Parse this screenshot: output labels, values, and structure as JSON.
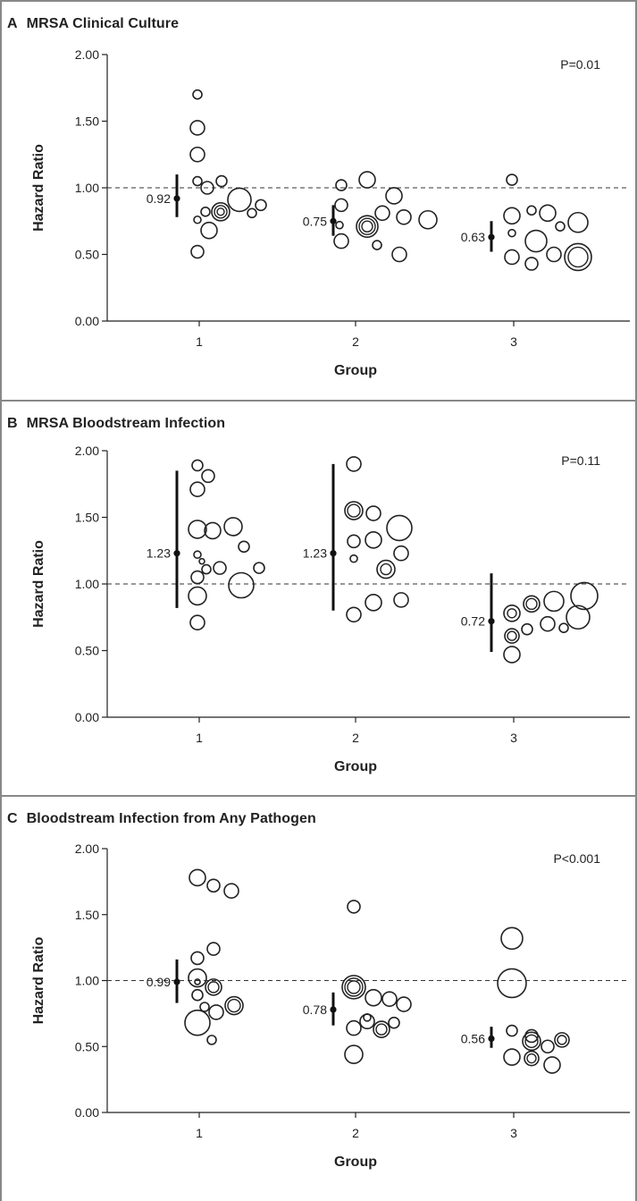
{
  "chart_data": [
    {
      "type": "scatter",
      "panel_letter": "A",
      "title": "MRSA Clinical Culture",
      "xlabel": "Group",
      "ylabel": "Hazard Ratio",
      "p_value": "P=0.01",
      "ylim": [
        0,
        2
      ],
      "yticks": [
        "0.00",
        "0.50",
        "1.00",
        "1.50",
        "2.00"
      ],
      "categories": [
        "1",
        "2",
        "3"
      ],
      "reference_line": 1.0,
      "group_estimates": [
        {
          "group": "1",
          "label": "0.92",
          "value": 0.92,
          "ci": [
            0.78,
            1.1
          ]
        },
        {
          "group": "2",
          "label": "0.75",
          "value": 0.75,
          "ci": [
            0.64,
            0.87
          ]
        },
        {
          "group": "3",
          "label": "0.63",
          "value": 0.63,
          "ci": [
            0.52,
            0.75
          ]
        }
      ],
      "points": [
        {
          "group": 1,
          "offset": -0.02,
          "hr": 1.7,
          "size": 5
        },
        {
          "group": 1,
          "offset": -0.02,
          "hr": 1.45,
          "size": 8
        },
        {
          "group": 1,
          "offset": -0.02,
          "hr": 1.25,
          "size": 8
        },
        {
          "group": 1,
          "offset": -0.02,
          "hr": 1.05,
          "size": 5
        },
        {
          "group": 1,
          "offset": 0.09,
          "hr": 1.0,
          "size": 7
        },
        {
          "group": 1,
          "offset": 0.25,
          "hr": 1.05,
          "size": 6
        },
        {
          "group": 1,
          "offset": -0.02,
          "hr": 0.76,
          "size": 4
        },
        {
          "group": 1,
          "offset": 0.07,
          "hr": 0.82,
          "size": 5
        },
        {
          "group": 1,
          "offset": 0.24,
          "hr": 0.82,
          "size": 10,
          "inner": [
            7,
            4
          ]
        },
        {
          "group": 1,
          "offset": 0.45,
          "hr": 0.91,
          "size": 13
        },
        {
          "group": 1,
          "offset": 0.59,
          "hr": 0.81,
          "size": 5
        },
        {
          "group": 1,
          "offset": 0.69,
          "hr": 0.87,
          "size": 6
        },
        {
          "group": 1,
          "offset": 0.11,
          "hr": 0.68,
          "size": 9
        },
        {
          "group": 1,
          "offset": -0.02,
          "hr": 0.52,
          "size": 7
        },
        {
          "group": 2,
          "offset": -0.16,
          "hr": 1.02,
          "size": 6
        },
        {
          "group": 2,
          "offset": 0.13,
          "hr": 1.06,
          "size": 9
        },
        {
          "group": 2,
          "offset": -0.16,
          "hr": 0.87,
          "size": 7
        },
        {
          "group": 2,
          "offset": -0.18,
          "hr": 0.72,
          "size": 4
        },
        {
          "group": 2,
          "offset": 0.13,
          "hr": 0.71,
          "size": 12,
          "inner": [
            9,
            6
          ]
        },
        {
          "group": 2,
          "offset": 0.3,
          "hr": 0.81,
          "size": 8
        },
        {
          "group": 2,
          "offset": 0.43,
          "hr": 0.94,
          "size": 9
        },
        {
          "group": 2,
          "offset": 0.54,
          "hr": 0.78,
          "size": 8
        },
        {
          "group": 2,
          "offset": 0.81,
          "hr": 0.76,
          "size": 10
        },
        {
          "group": 2,
          "offset": -0.16,
          "hr": 0.6,
          "size": 8
        },
        {
          "group": 2,
          "offset": 0.24,
          "hr": 0.57,
          "size": 5
        },
        {
          "group": 2,
          "offset": 0.49,
          "hr": 0.5,
          "size": 8
        },
        {
          "group": 3,
          "offset": -0.02,
          "hr": 1.06,
          "size": 6
        },
        {
          "group": 3,
          "offset": -0.02,
          "hr": 0.79,
          "size": 9
        },
        {
          "group": 3,
          "offset": 0.2,
          "hr": 0.83,
          "size": 5
        },
        {
          "group": 3,
          "offset": 0.38,
          "hr": 0.81,
          "size": 9
        },
        {
          "group": 3,
          "offset": 0.52,
          "hr": 0.71,
          "size": 5
        },
        {
          "group": 3,
          "offset": 0.72,
          "hr": 0.74,
          "size": 11
        },
        {
          "group": 3,
          "offset": -0.02,
          "hr": 0.66,
          "size": 4
        },
        {
          "group": 3,
          "offset": 0.25,
          "hr": 0.6,
          "size": 12
        },
        {
          "group": 3,
          "offset": -0.02,
          "hr": 0.48,
          "size": 8
        },
        {
          "group": 3,
          "offset": 0.2,
          "hr": 0.43,
          "size": 7
        },
        {
          "group": 3,
          "offset": 0.45,
          "hr": 0.5,
          "size": 8
        },
        {
          "group": 3,
          "offset": 0.72,
          "hr": 0.48,
          "size": 15,
          "inner": [
            11
          ]
        }
      ]
    },
    {
      "type": "scatter",
      "panel_letter": "B",
      "title": "MRSA Bloodstream Infection",
      "xlabel": "Group",
      "ylabel": "Hazard Ratio",
      "p_value": "P=0.11",
      "ylim": [
        0,
        2
      ],
      "yticks": [
        "0.00",
        "0.50",
        "1.00",
        "1.50",
        "2.00"
      ],
      "categories": [
        "1",
        "2",
        "3"
      ],
      "reference_line": 1.0,
      "group_estimates": [
        {
          "group": "1",
          "label": "1.23",
          "value": 1.23,
          "ci": [
            0.82,
            1.85
          ]
        },
        {
          "group": "2",
          "label": "1.23",
          "value": 1.23,
          "ci": [
            0.8,
            1.9
          ]
        },
        {
          "group": "3",
          "label": "0.72",
          "value": 0.72,
          "ci": [
            0.49,
            1.08
          ]
        }
      ],
      "points": [
        {
          "group": 1,
          "offset": -0.02,
          "hr": 1.89,
          "size": 6
        },
        {
          "group": 1,
          "offset": 0.1,
          "hr": 1.81,
          "size": 7
        },
        {
          "group": 1,
          "offset": -0.02,
          "hr": 1.71,
          "size": 8
        },
        {
          "group": 1,
          "offset": -0.02,
          "hr": 1.41,
          "size": 10
        },
        {
          "group": 1,
          "offset": 0.15,
          "hr": 1.4,
          "size": 9
        },
        {
          "group": 1,
          "offset": 0.38,
          "hr": 1.43,
          "size": 10
        },
        {
          "group": 1,
          "offset": -0.02,
          "hr": 1.22,
          "size": 4
        },
        {
          "group": 1,
          "offset": 0.03,
          "hr": 1.17,
          "size": 3
        },
        {
          "group": 1,
          "offset": 0.08,
          "hr": 1.11,
          "size": 5
        },
        {
          "group": 1,
          "offset": 0.23,
          "hr": 1.12,
          "size": 7
        },
        {
          "group": 1,
          "offset": 0.5,
          "hr": 1.28,
          "size": 6
        },
        {
          "group": 1,
          "offset": 0.67,
          "hr": 1.12,
          "size": 6
        },
        {
          "group": 1,
          "offset": -0.02,
          "hr": 1.05,
          "size": 7
        },
        {
          "group": 1,
          "offset": -0.02,
          "hr": 0.91,
          "size": 10
        },
        {
          "group": 1,
          "offset": 0.47,
          "hr": 0.99,
          "size": 14
        },
        {
          "group": 1,
          "offset": -0.02,
          "hr": 0.71,
          "size": 8
        },
        {
          "group": 2,
          "offset": -0.02,
          "hr": 1.9,
          "size": 8
        },
        {
          "group": 2,
          "offset": -0.02,
          "hr": 1.55,
          "size": 10,
          "inner": [
            7
          ]
        },
        {
          "group": 2,
          "offset": 0.2,
          "hr": 1.53,
          "size": 8
        },
        {
          "group": 2,
          "offset": 0.49,
          "hr": 1.42,
          "size": 14
        },
        {
          "group": 2,
          "offset": -0.02,
          "hr": 1.32,
          "size": 7
        },
        {
          "group": 2,
          "offset": 0.2,
          "hr": 1.33,
          "size": 9
        },
        {
          "group": 2,
          "offset": -0.02,
          "hr": 1.19,
          "size": 4
        },
        {
          "group": 2,
          "offset": 0.51,
          "hr": 1.23,
          "size": 8
        },
        {
          "group": 2,
          "offset": 0.34,
          "hr": 1.11,
          "size": 10,
          "inner": [
            6
          ]
        },
        {
          "group": 2,
          "offset": 0.2,
          "hr": 0.86,
          "size": 9
        },
        {
          "group": 2,
          "offset": 0.51,
          "hr": 0.88,
          "size": 8
        },
        {
          "group": 2,
          "offset": -0.02,
          "hr": 0.77,
          "size": 8
        },
        {
          "group": 3,
          "offset": -0.02,
          "hr": 0.78,
          "size": 9,
          "inner": [
            5
          ]
        },
        {
          "group": 3,
          "offset": 0.2,
          "hr": 0.85,
          "size": 9,
          "inner": [
            6
          ]
        },
        {
          "group": 3,
          "offset": 0.45,
          "hr": 0.87,
          "size": 11
        },
        {
          "group": 3,
          "offset": 0.79,
          "hr": 0.91,
          "size": 15
        },
        {
          "group": 3,
          "offset": -0.02,
          "hr": 0.61,
          "size": 8,
          "inner": [
            5
          ]
        },
        {
          "group": 3,
          "offset": 0.15,
          "hr": 0.66,
          "size": 6
        },
        {
          "group": 3,
          "offset": 0.38,
          "hr": 0.7,
          "size": 8
        },
        {
          "group": 3,
          "offset": 0.56,
          "hr": 0.67,
          "size": 5
        },
        {
          "group": 3,
          "offset": 0.72,
          "hr": 0.75,
          "size": 13
        },
        {
          "group": 3,
          "offset": -0.02,
          "hr": 0.47,
          "size": 9
        }
      ]
    },
    {
      "type": "scatter",
      "panel_letter": "C",
      "title": "Bloodstream Infection from Any Pathogen",
      "xlabel": "Group",
      "ylabel": "Hazard Ratio",
      "p_value": "P<0.001",
      "ylim": [
        0,
        2
      ],
      "yticks": [
        "0.00",
        "0.50",
        "1.00",
        "1.50",
        "2.00"
      ],
      "categories": [
        "1",
        "2",
        "3"
      ],
      "reference_line": 1.0,
      "group_estimates": [
        {
          "group": "1",
          "label": "0.99",
          "value": 0.99,
          "ci": [
            0.83,
            1.16
          ]
        },
        {
          "group": "2",
          "label": "0.78",
          "value": 0.78,
          "ci": [
            0.66,
            0.91
          ]
        },
        {
          "group": "3",
          "label": "0.56",
          "value": 0.56,
          "ci": [
            0.49,
            0.65
          ]
        }
      ],
      "points": [
        {
          "group": 1,
          "offset": -0.02,
          "hr": 1.78,
          "size": 9
        },
        {
          "group": 1,
          "offset": 0.16,
          "hr": 1.72,
          "size": 7
        },
        {
          "group": 1,
          "offset": 0.36,
          "hr": 1.68,
          "size": 8
        },
        {
          "group": 1,
          "offset": -0.02,
          "hr": 1.17,
          "size": 7
        },
        {
          "group": 1,
          "offset": 0.16,
          "hr": 1.24,
          "size": 7
        },
        {
          "group": 1,
          "offset": -0.02,
          "hr": 1.02,
          "size": 10
        },
        {
          "group": 1,
          "offset": -0.02,
          "hr": 0.99,
          "size": 3
        },
        {
          "group": 1,
          "offset": -0.02,
          "hr": 0.89,
          "size": 6
        },
        {
          "group": 1,
          "offset": 0.16,
          "hr": 0.95,
          "size": 9,
          "inner": [
            6
          ]
        },
        {
          "group": 1,
          "offset": 0.06,
          "hr": 0.8,
          "size": 5
        },
        {
          "group": 1,
          "offset": 0.19,
          "hr": 0.76,
          "size": 8
        },
        {
          "group": 1,
          "offset": 0.39,
          "hr": 0.81,
          "size": 10,
          "inner": [
            7
          ]
        },
        {
          "group": 1,
          "offset": -0.02,
          "hr": 0.68,
          "size": 14
        },
        {
          "group": 1,
          "offset": 0.14,
          "hr": 0.55,
          "size": 5
        },
        {
          "group": 2,
          "offset": -0.02,
          "hr": 1.56,
          "size": 7
        },
        {
          "group": 2,
          "offset": -0.02,
          "hr": 0.95,
          "size": 13,
          "inner": [
            10,
            7
          ]
        },
        {
          "group": 2,
          "offset": 0.2,
          "hr": 0.87,
          "size": 9
        },
        {
          "group": 2,
          "offset": 0.38,
          "hr": 0.86,
          "size": 8
        },
        {
          "group": 2,
          "offset": 0.54,
          "hr": 0.82,
          "size": 8
        },
        {
          "group": 2,
          "offset": -0.02,
          "hr": 0.64,
          "size": 8
        },
        {
          "group": 2,
          "offset": 0.13,
          "hr": 0.72,
          "size": 4
        },
        {
          "group": 2,
          "offset": 0.13,
          "hr": 0.69,
          "size": 8
        },
        {
          "group": 2,
          "offset": 0.29,
          "hr": 0.63,
          "size": 9,
          "inner": [
            6
          ]
        },
        {
          "group": 2,
          "offset": 0.43,
          "hr": 0.68,
          "size": 6
        },
        {
          "group": 2,
          "offset": -0.02,
          "hr": 0.44,
          "size": 10
        },
        {
          "group": 3,
          "offset": -0.02,
          "hr": 1.32,
          "size": 12
        },
        {
          "group": 3,
          "offset": -0.02,
          "hr": 0.98,
          "size": 16
        },
        {
          "group": 3,
          "offset": -0.02,
          "hr": 0.62,
          "size": 6
        },
        {
          "group": 3,
          "offset": 0.2,
          "hr": 0.58,
          "size": 7
        },
        {
          "group": 3,
          "offset": 0.2,
          "hr": 0.54,
          "size": 10,
          "inner": [
            7
          ]
        },
        {
          "group": 3,
          "offset": 0.38,
          "hr": 0.5,
          "size": 7
        },
        {
          "group": 3,
          "offset": 0.54,
          "hr": 0.55,
          "size": 8,
          "inner": [
            5
          ]
        },
        {
          "group": 3,
          "offset": 0.2,
          "hr": 0.41,
          "size": 8,
          "inner": [
            5
          ]
        },
        {
          "group": 3,
          "offset": 0.43,
          "hr": 0.36,
          "size": 9
        },
        {
          "group": 3,
          "offset": -0.02,
          "hr": 0.42,
          "size": 9
        }
      ]
    }
  ]
}
